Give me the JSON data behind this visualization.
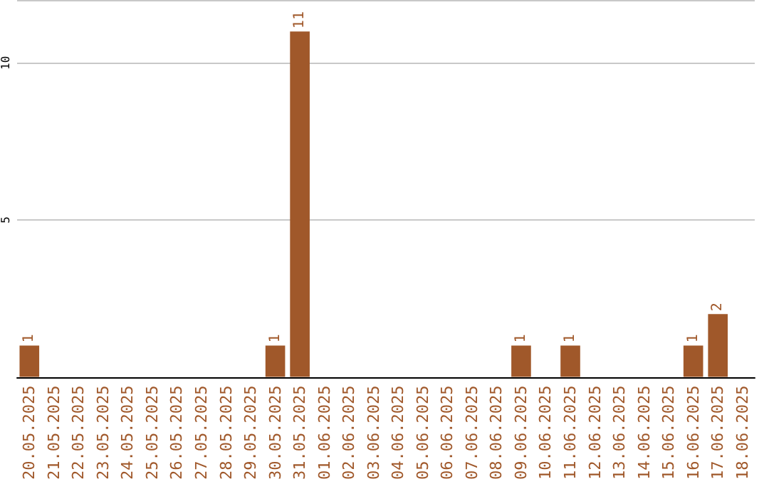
{
  "chart_data": {
    "type": "bar",
    "categories": [
      "20.05.2025",
      "21.05.2025",
      "22.05.2025",
      "23.05.2025",
      "24.05.2025",
      "25.05.2025",
      "26.05.2025",
      "27.05.2025",
      "28.05.2025",
      "29.05.2025",
      "30.05.2025",
      "31.05.2025",
      "01.06.2025",
      "02.06.2025",
      "03.06.2025",
      "04.06.2025",
      "05.06.2025",
      "06.06.2025",
      "07.06.2025",
      "08.06.2025",
      "09.06.2025",
      "10.06.2025",
      "11.06.2025",
      "12.06.2025",
      "13.06.2025",
      "14.06.2025",
      "15.06.2025",
      "16.06.2025",
      "17.06.2025",
      "18.06.2025"
    ],
    "values": [
      1,
      0,
      0,
      0,
      0,
      0,
      0,
      0,
      0,
      0,
      1,
      11,
      0,
      0,
      0,
      0,
      0,
      0,
      0,
      0,
      1,
      0,
      1,
      0,
      0,
      0,
      0,
      1,
      2,
      0
    ],
    "value_labels": [
      "1",
      null,
      null,
      null,
      null,
      null,
      null,
      null,
      null,
      null,
      "1",
      "11",
      null,
      null,
      null,
      null,
      null,
      null,
      null,
      null,
      "1",
      null,
      "1",
      null,
      null,
      null,
      null,
      "1",
      "2",
      null
    ],
    "color": "#a0582a",
    "ylim": [
      0,
      12
    ],
    "yticks": [
      5,
      10
    ],
    "grid": "y"
  }
}
